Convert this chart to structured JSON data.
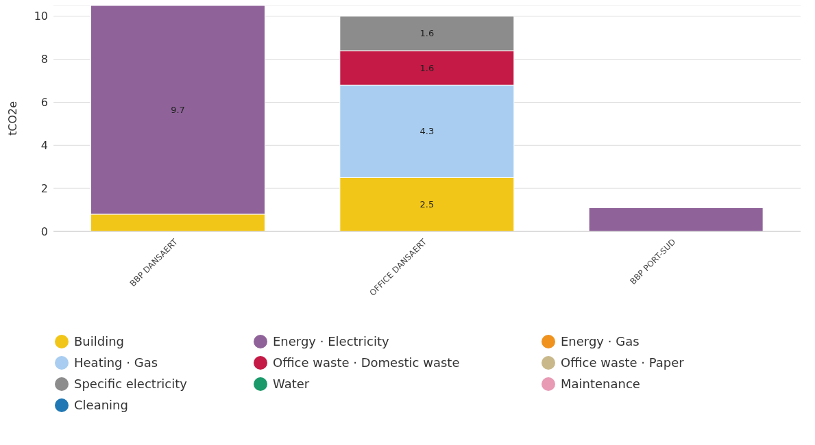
{
  "chart_data": {
    "type": "bar",
    "stacked": true,
    "ylabel": "tCO2e",
    "categories": [
      "BBP DANSAERT",
      "OFFICE DANSAERT",
      "BBP PORT-SUD"
    ],
    "ylim": [
      0,
      10.5
    ],
    "yticks": [
      0,
      2,
      4,
      6,
      8,
      10
    ],
    "grid": "y",
    "legend": "bottom",
    "series": [
      {
        "name": "Building",
        "color": "#f2c618",
        "values": [
          0.8,
          2.5,
          null
        ],
        "value_labels": [
          null,
          "2.5",
          null
        ]
      },
      {
        "name": "Energy · Electricity",
        "color": "#8f6399",
        "values": [
          9.7,
          null,
          1.1
        ],
        "value_labels": [
          "9.7",
          null,
          null
        ]
      },
      {
        "name": "Energy · Gas",
        "color": "#f0921e",
        "values": [
          null,
          null,
          null
        ]
      },
      {
        "name": "Heating · Gas",
        "color": "#a8cdf0",
        "values": [
          null,
          4.3,
          null
        ],
        "value_labels": [
          null,
          "4.3",
          null
        ]
      },
      {
        "name": "Office waste · Domestic waste",
        "color": "#c41a45",
        "values": [
          null,
          1.6,
          null
        ],
        "value_labels": [
          null,
          "1.6",
          null
        ]
      },
      {
        "name": "Office waste · Paper",
        "color": "#c9b98a",
        "values": [
          null,
          null,
          null
        ]
      },
      {
        "name": "Specific electricity",
        "color": "#8c8c8c",
        "values": [
          null,
          1.6,
          null
        ],
        "value_labels": [
          null,
          "1.6",
          null
        ]
      },
      {
        "name": "Water",
        "color": "#1a9a6a",
        "values": [
          null,
          null,
          null
        ]
      },
      {
        "name": "Maintenance",
        "color": "#e89ab5",
        "values": [
          null,
          null,
          null
        ]
      },
      {
        "name": "Cleaning",
        "color": "#1f78b4",
        "values": [
          null,
          null,
          null
        ]
      }
    ]
  }
}
